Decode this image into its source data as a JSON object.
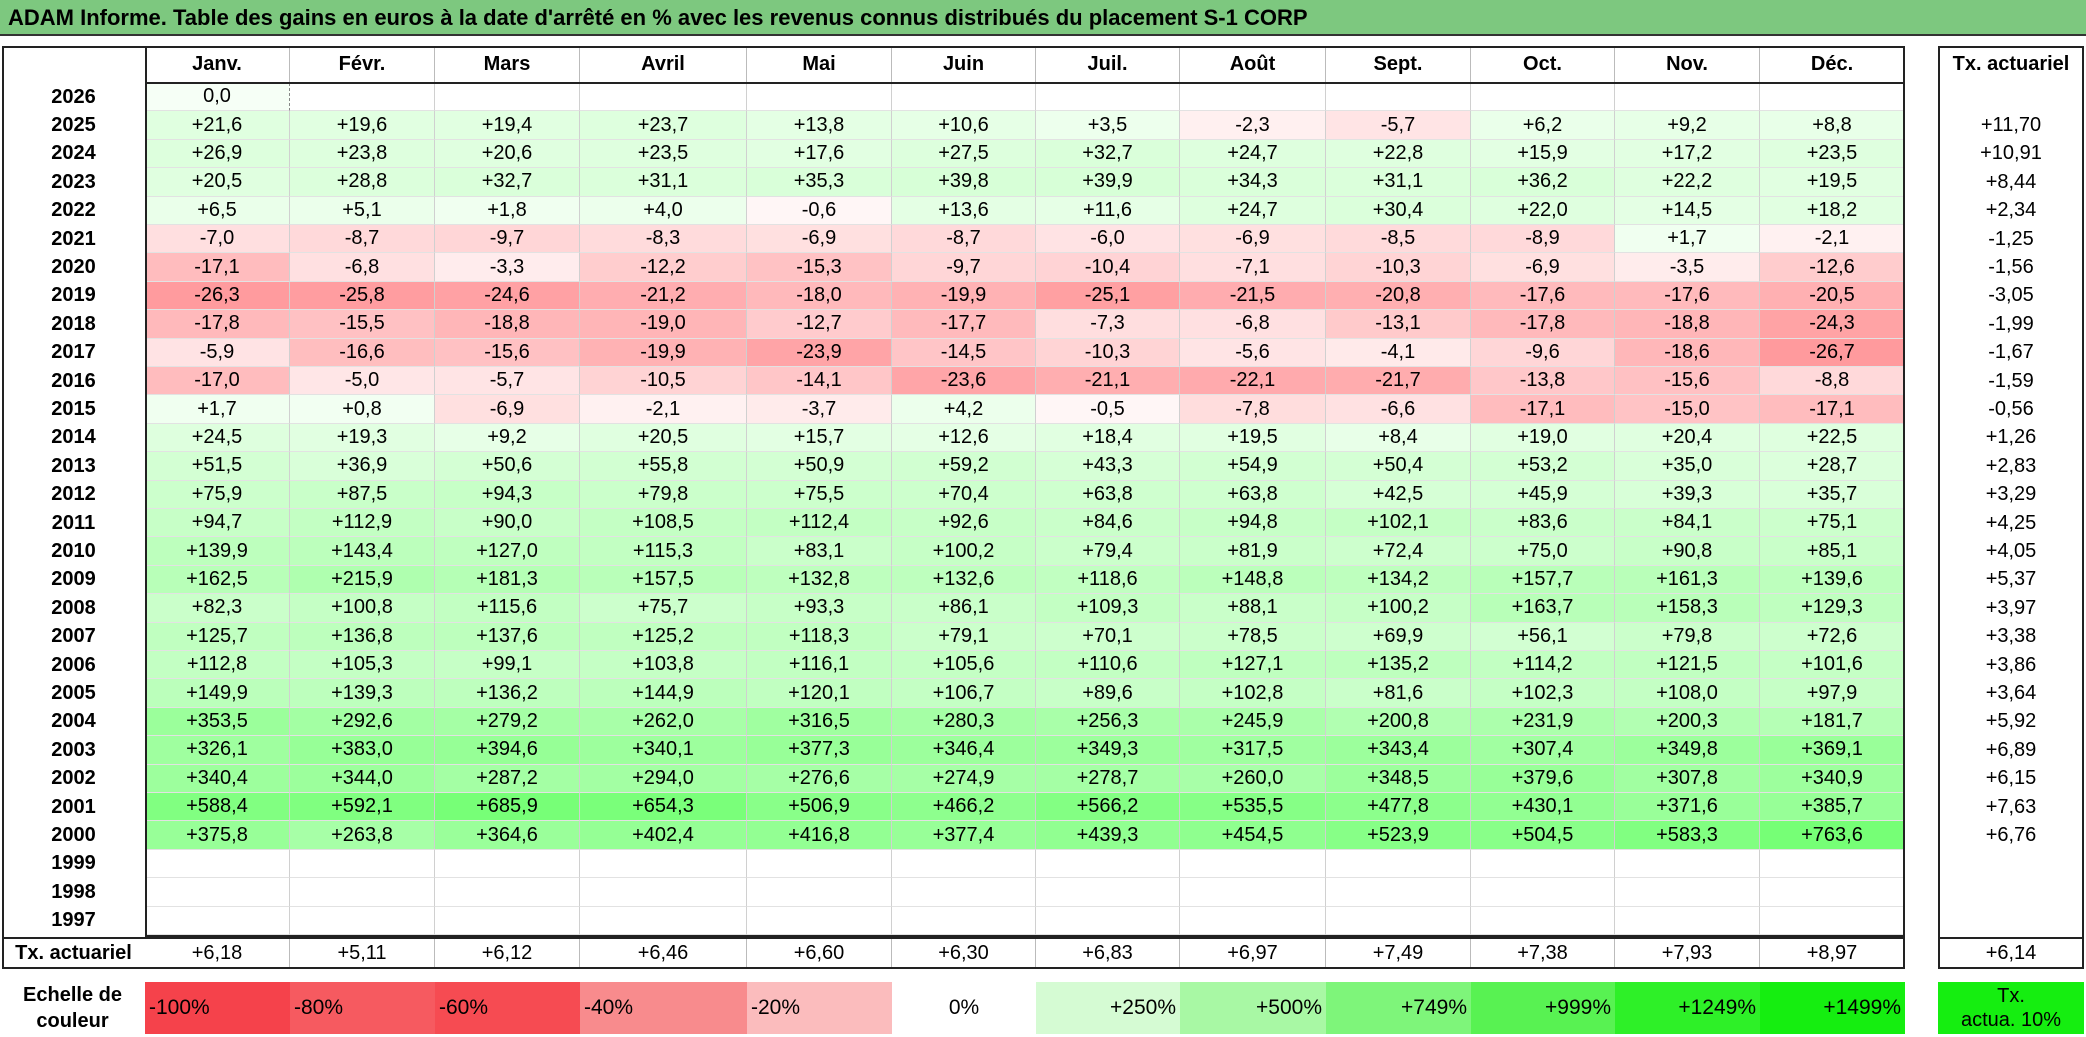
{
  "title": "ADAM Informe. Table des gains en euros à la date d'arrêté en % avec les revenus connus distribués du placement S-1 CORP",
  "months": [
    "Janv.",
    "Févr.",
    "Mars",
    "Avril",
    "Mai",
    "Juin",
    "Juil.",
    "Août",
    "Sept.",
    "Oct.",
    "Nov.",
    "Déc."
  ],
  "rate_header": "Tx. actuariel",
  "rows": [
    {
      "year": "2026",
      "values": [
        "0,0",
        "",
        "",
        "",
        "",
        "",
        "",
        "",
        "",
        "",
        "",
        ""
      ],
      "rate": ""
    },
    {
      "year": "2025",
      "values": [
        "+21,6",
        "+19,6",
        "+19,4",
        "+23,7",
        "+13,8",
        "+10,6",
        "+3,5",
        "-2,3",
        "-5,7",
        "+6,2",
        "+9,2",
        "+8,8"
      ],
      "rate": "+11,70"
    },
    {
      "year": "2024",
      "values": [
        "+26,9",
        "+23,8",
        "+20,6",
        "+23,5",
        "+17,6",
        "+27,5",
        "+32,7",
        "+24,7",
        "+22,8",
        "+15,9",
        "+17,2",
        "+23,5"
      ],
      "rate": "+10,91"
    },
    {
      "year": "2023",
      "values": [
        "+20,5",
        "+28,8",
        "+32,7",
        "+31,1",
        "+35,3",
        "+39,8",
        "+39,9",
        "+34,3",
        "+31,1",
        "+36,2",
        "+22,2",
        "+19,5"
      ],
      "rate": "+8,44"
    },
    {
      "year": "2022",
      "values": [
        "+6,5",
        "+5,1",
        "+1,8",
        "+4,0",
        "-0,6",
        "+13,6",
        "+11,6",
        "+24,7",
        "+30,4",
        "+22,0",
        "+14,5",
        "+18,2"
      ],
      "rate": "+2,34"
    },
    {
      "year": "2021",
      "values": [
        "-7,0",
        "-8,7",
        "-9,7",
        "-8,3",
        "-6,9",
        "-8,7",
        "-6,0",
        "-6,9",
        "-8,5",
        "-8,9",
        "+1,7",
        "-2,1"
      ],
      "rate": "-1,25"
    },
    {
      "year": "2020",
      "values": [
        "-17,1",
        "-6,8",
        "-3,3",
        "-12,2",
        "-15,3",
        "-9,7",
        "-10,4",
        "-7,1",
        "-10,3",
        "-6,9",
        "-3,5",
        "-12,6"
      ],
      "rate": "-1,56"
    },
    {
      "year": "2019",
      "values": [
        "-26,3",
        "-25,8",
        "-24,6",
        "-21,2",
        "-18,0",
        "-19,9",
        "-25,1",
        "-21,5",
        "-20,8",
        "-17,6",
        "-17,6",
        "-20,5"
      ],
      "rate": "-3,05"
    },
    {
      "year": "2018",
      "values": [
        "-17,8",
        "-15,5",
        "-18,8",
        "-19,0",
        "-12,7",
        "-17,7",
        "-7,3",
        "-6,8",
        "-13,1",
        "-17,8",
        "-18,8",
        "-24,3"
      ],
      "rate": "-1,99"
    },
    {
      "year": "2017",
      "values": [
        "-5,9",
        "-16,6",
        "-15,6",
        "-19,9",
        "-23,9",
        "-14,5",
        "-10,3",
        "-5,6",
        "-4,1",
        "-9,6",
        "-18,6",
        "-26,7"
      ],
      "rate": "-1,67"
    },
    {
      "year": "2016",
      "values": [
        "-17,0",
        "-5,0",
        "-5,7",
        "-10,5",
        "-14,1",
        "-23,6",
        "-21,1",
        "-22,1",
        "-21,7",
        "-13,8",
        "-15,6",
        "-8,8"
      ],
      "rate": "-1,59"
    },
    {
      "year": "2015",
      "values": [
        "+1,7",
        "+0,8",
        "-6,9",
        "-2,1",
        "-3,7",
        "+4,2",
        "-0,5",
        "-7,8",
        "-6,6",
        "-17,1",
        "-15,0",
        "-17,1"
      ],
      "rate": "-0,56"
    },
    {
      "year": "2014",
      "values": [
        "+24,5",
        "+19,3",
        "+9,2",
        "+20,5",
        "+15,7",
        "+12,6",
        "+18,4",
        "+19,5",
        "+8,4",
        "+19,0",
        "+20,4",
        "+22,5"
      ],
      "rate": "+1,26"
    },
    {
      "year": "2013",
      "values": [
        "+51,5",
        "+36,9",
        "+50,6",
        "+55,8",
        "+50,9",
        "+59,2",
        "+43,3",
        "+54,9",
        "+50,4",
        "+53,2",
        "+35,0",
        "+28,7"
      ],
      "rate": "+2,83"
    },
    {
      "year": "2012",
      "values": [
        "+75,9",
        "+87,5",
        "+94,3",
        "+79,8",
        "+75,5",
        "+70,4",
        "+63,8",
        "+63,8",
        "+42,5",
        "+45,9",
        "+39,3",
        "+35,7"
      ],
      "rate": "+3,29"
    },
    {
      "year": "2011",
      "values": [
        "+94,7",
        "+112,9",
        "+90,0",
        "+108,5",
        "+112,4",
        "+92,6",
        "+84,6",
        "+94,8",
        "+102,1",
        "+83,6",
        "+84,1",
        "+75,1"
      ],
      "rate": "+4,25"
    },
    {
      "year": "2010",
      "values": [
        "+139,9",
        "+143,4",
        "+127,0",
        "+115,3",
        "+83,1",
        "+100,2",
        "+79,4",
        "+81,9",
        "+72,4",
        "+75,0",
        "+90,8",
        "+85,1"
      ],
      "rate": "+4,05"
    },
    {
      "year": "2009",
      "values": [
        "+162,5",
        "+215,9",
        "+181,3",
        "+157,5",
        "+132,8",
        "+132,6",
        "+118,6",
        "+148,8",
        "+134,2",
        "+157,7",
        "+161,3",
        "+139,6"
      ],
      "rate": "+5,37"
    },
    {
      "year": "2008",
      "values": [
        "+82,3",
        "+100,8",
        "+115,6",
        "+75,7",
        "+93,3",
        "+86,1",
        "+109,3",
        "+88,1",
        "+100,2",
        "+163,7",
        "+158,3",
        "+129,3"
      ],
      "rate": "+3,97"
    },
    {
      "year": "2007",
      "values": [
        "+125,7",
        "+136,8",
        "+137,6",
        "+125,2",
        "+118,3",
        "+79,1",
        "+70,1",
        "+78,5",
        "+69,9",
        "+56,1",
        "+79,8",
        "+72,6"
      ],
      "rate": "+3,38"
    },
    {
      "year": "2006",
      "values": [
        "+112,8",
        "+105,3",
        "+99,1",
        "+103,8",
        "+116,1",
        "+105,6",
        "+110,6",
        "+127,1",
        "+135,2",
        "+114,2",
        "+121,5",
        "+101,6"
      ],
      "rate": "+3,86"
    },
    {
      "year": "2005",
      "values": [
        "+149,9",
        "+139,3",
        "+136,2",
        "+144,9",
        "+120,1",
        "+106,7",
        "+89,6",
        "+102,8",
        "+81,6",
        "+102,3",
        "+108,0",
        "+97,9"
      ],
      "rate": "+3,64"
    },
    {
      "year": "2004",
      "values": [
        "+353,5",
        "+292,6",
        "+279,2",
        "+262,0",
        "+316,5",
        "+280,3",
        "+256,3",
        "+245,9",
        "+200,8",
        "+231,9",
        "+200,3",
        "+181,7"
      ],
      "rate": "+5,92"
    },
    {
      "year": "2003",
      "values": [
        "+326,1",
        "+383,0",
        "+394,6",
        "+340,1",
        "+377,3",
        "+346,4",
        "+349,3",
        "+317,5",
        "+343,4",
        "+307,4",
        "+349,8",
        "+369,1"
      ],
      "rate": "+6,89"
    },
    {
      "year": "2002",
      "values": [
        "+340,4",
        "+344,0",
        "+287,2",
        "+294,0",
        "+276,6",
        "+274,9",
        "+278,7",
        "+260,0",
        "+348,5",
        "+379,6",
        "+307,8",
        "+340,9"
      ],
      "rate": "+6,15"
    },
    {
      "year": "2001",
      "values": [
        "+588,4",
        "+592,1",
        "+685,9",
        "+654,3",
        "+506,9",
        "+466,2",
        "+566,2",
        "+535,5",
        "+477,8",
        "+430,1",
        "+371,6",
        "+385,7"
      ],
      "rate": "+7,63"
    },
    {
      "year": "2000",
      "values": [
        "+375,8",
        "+263,8",
        "+364,6",
        "+402,4",
        "+416,8",
        "+377,4",
        "+439,3",
        "+454,5",
        "+523,9",
        "+504,5",
        "+583,3",
        "+763,6"
      ],
      "rate": "+6,76"
    },
    {
      "year": "1999",
      "values": [
        "",
        "",
        "",
        "",
        "",
        "",
        "",
        "",
        "",
        "",
        "",
        ""
      ],
      "rate": ""
    },
    {
      "year": "1998",
      "values": [
        "",
        "",
        "",
        "",
        "",
        "",
        "",
        "",
        "",
        "",
        "",
        ""
      ],
      "rate": ""
    },
    {
      "year": "1997",
      "values": [
        "",
        "",
        "",
        "",
        "",
        "",
        "",
        "",
        "",
        "",
        "",
        ""
      ],
      "rate": ""
    }
  ],
  "footer": {
    "label": "Tx. actuariel",
    "values": [
      "+6,18",
      "+5,11",
      "+6,12",
      "+6,46",
      "+6,60",
      "+6,30",
      "+6,83",
      "+6,97",
      "+7,49",
      "+7,38",
      "+7,93",
      "+8,97"
    ],
    "total": "+6,14"
  },
  "scale": {
    "label_line1": "Echelle de",
    "label_line2": "couleur",
    "cells": [
      {
        "text": "-100%",
        "color": "#f5424b",
        "align": "left"
      },
      {
        "text": "-80%",
        "color": "#f65a60",
        "align": "left"
      },
      {
        "text": "-60%",
        "color": "#f64b52",
        "align": "left"
      },
      {
        "text": "-40%",
        "color": "#f88b8d",
        "align": "left"
      },
      {
        "text": "-20%",
        "color": "#fbbcbd",
        "align": "left"
      },
      {
        "text": "0%",
        "color": "#ffffff",
        "align": "center"
      },
      {
        "text": "+250%",
        "color": "#d5fbd3",
        "align": "right"
      },
      {
        "text": "+500%",
        "color": "#a8f8a4",
        "align": "right"
      },
      {
        "text": "+749%",
        "color": "#7ef57a",
        "align": "right"
      },
      {
        "text": "+999%",
        "color": "#58f252",
        "align": "right"
      },
      {
        "text": "+1249%",
        "color": "#2ef028",
        "align": "right"
      },
      {
        "text": "+1499%",
        "color": "#15ee10",
        "align": "right"
      }
    ],
    "legend_line1": "Tx.",
    "legend_line2": "actua. 10%",
    "legend_color": "#15ee10"
  }
}
